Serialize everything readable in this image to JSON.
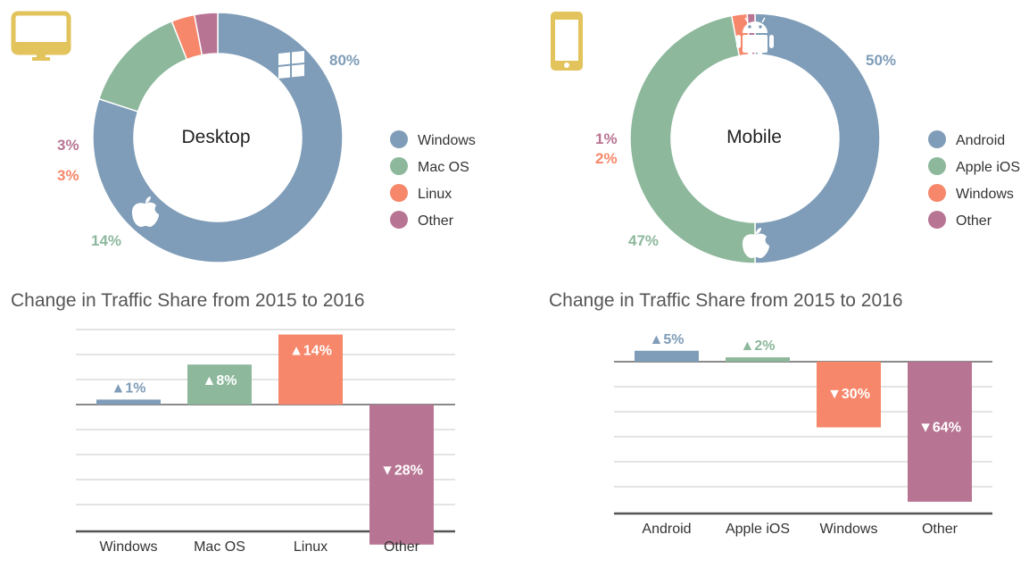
{
  "colors": {
    "windows_desktop": "#7f9db8",
    "mac": "#8db89c",
    "linux": "#f6876a",
    "other": "#b87593",
    "gridline": "#c8c8c8",
    "baseline": "#8a8a8a",
    "title_text": "#555555",
    "label_text": "#333333",
    "icon_gold": "#e2c35c"
  },
  "chart_data": [
    {
      "type": "pie",
      "variant": "donut",
      "title": "Desktop",
      "icon": "monitor-icon",
      "slices": [
        {
          "name": "Windows",
          "value": 80,
          "label": "80%",
          "color": "#7f9db8",
          "icon": "windows-logo-icon"
        },
        {
          "name": "Mac OS",
          "value": 14,
          "label": "14%",
          "color": "#8db89c",
          "icon": "apple-logo-icon"
        },
        {
          "name": "Linux",
          "value": 3,
          "label": "3%",
          "color": "#f6876a"
        },
        {
          "name": "Other",
          "value": 3,
          "label": "3%",
          "color": "#b87593"
        }
      ],
      "legend": [
        "Windows",
        "Mac OS",
        "Linux",
        "Other"
      ],
      "legend_position": "right"
    },
    {
      "type": "pie",
      "variant": "donut",
      "title": "Mobile",
      "icon": "phone-icon",
      "slices": [
        {
          "name": "Android",
          "value": 50,
          "label": "50%",
          "color": "#7f9db8",
          "icon": "android-logo-icon"
        },
        {
          "name": "Apple iOS",
          "value": 47,
          "label": "47%",
          "color": "#8db89c",
          "icon": "apple-logo-icon"
        },
        {
          "name": "Windows",
          "value": 2,
          "label": "2%",
          "color": "#f6876a"
        },
        {
          "name": "Other",
          "value": 1,
          "label": "1%",
          "color": "#b87593"
        }
      ],
      "legend": [
        "Android",
        "Apple iOS",
        "Windows",
        "Other"
      ],
      "legend_position": "right"
    },
    {
      "type": "bar",
      "title": "Change in Traffic Share from 2015 to 2016",
      "categories": [
        "Windows",
        "Mac OS",
        "Linux",
        "Other"
      ],
      "values": [
        1,
        8,
        14,
        -28
      ],
      "labels": [
        "▲1%",
        "▲8%",
        "▲14%",
        "▼28%"
      ],
      "colors": [
        "#7f9db8",
        "#8db89c",
        "#f6876a",
        "#b87593"
      ],
      "grid": true
    },
    {
      "type": "bar",
      "title": "Change in Traffic Share from 2015 to 2016",
      "categories": [
        "Android",
        "Apple iOS",
        "Windows",
        "Other"
      ],
      "values": [
        5,
        2,
        -30,
        -64
      ],
      "labels": [
        "▲5%",
        "▲2%",
        "▼30%",
        "▼64%"
      ],
      "colors": [
        "#7f9db8",
        "#8db89c",
        "#f6876a",
        "#b87593"
      ],
      "grid": true
    }
  ]
}
